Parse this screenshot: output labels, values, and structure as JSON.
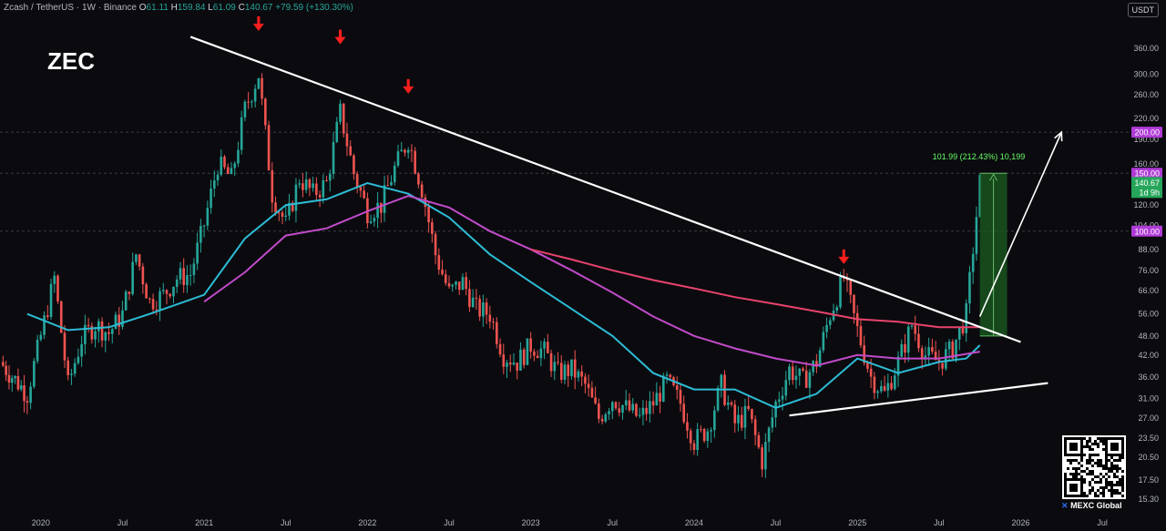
{
  "header": {
    "pair": "Zcash / TetherUS · 1W · Binance",
    "open_label": "O",
    "open": "61.11",
    "high_label": "H",
    "high": "159.84",
    "low_label": "L",
    "low": "61.09",
    "close_label": "C",
    "close": "140.67",
    "change": "+79.59 (+130.30%)"
  },
  "symbol": "ZEC",
  "currency_button": "USDT",
  "brand": {
    "mark": "✕",
    "name": "MEXC Global"
  },
  "colors": {
    "background": "#0b0b0f",
    "up": "#26a69a",
    "down": "#ef5350",
    "ema_short": "#2dbcd6",
    "ema_mid": "#c14bc9",
    "ema_long": "#e9436d",
    "trendline": "#ffffff",
    "arrow_marker": "#ff1e1e",
    "target_box": "#1b5e20",
    "level_label": "#b03bd6"
  },
  "chart_data": {
    "type": "candlestick",
    "title": "",
    "xlabel": "",
    "ylabel": "",
    "scale": "log",
    "ylim": [
      14,
      450
    ],
    "y_ticks": [
      15.3,
      17.5,
      20.5,
      23.5,
      27.0,
      31.0,
      36.0,
      42.0,
      48.0,
      56.0,
      66.0,
      76.0,
      88.0,
      104.0,
      120.0,
      140.0,
      160.0,
      190.0,
      220.0,
      260.0,
      300.0,
      360.0
    ],
    "x_ticks": [
      "2020",
      "Jul",
      "2021",
      "Jul",
      "2022",
      "Jul",
      "2023",
      "Jul",
      "2024",
      "Jul",
      "2025",
      "Jul",
      "2026",
      "Jul"
    ],
    "x_range": [
      "2019-10",
      "2026-09"
    ],
    "weekly_closes": [
      {
        "date": "2019-10",
        "close": 40
      },
      {
        "date": "2019-12",
        "close": 32
      },
      {
        "date": "2020-01",
        "close": 48
      },
      {
        "date": "2020-02",
        "close": 72
      },
      {
        "date": "2020-03",
        "close": 34
      },
      {
        "date": "2020-04",
        "close": 47
      },
      {
        "date": "2020-05",
        "close": 52
      },
      {
        "date": "2020-06",
        "close": 49
      },
      {
        "date": "2020-07",
        "close": 56
      },
      {
        "date": "2020-08",
        "close": 85
      },
      {
        "date": "2020-09",
        "close": 61
      },
      {
        "date": "2020-10",
        "close": 64
      },
      {
        "date": "2020-11",
        "close": 72
      },
      {
        "date": "2020-12",
        "close": 74
      },
      {
        "date": "2021-01",
        "close": 105
      },
      {
        "date": "2021-02",
        "close": 160
      },
      {
        "date": "2021-03",
        "close": 145
      },
      {
        "date": "2021-04",
        "close": 235
      },
      {
        "date": "2021-05",
        "close": 300
      },
      {
        "date": "2021-06",
        "close": 130
      },
      {
        "date": "2021-07",
        "close": 105
      },
      {
        "date": "2021-08",
        "close": 145
      },
      {
        "date": "2021-09",
        "close": 130
      },
      {
        "date": "2021-10",
        "close": 140
      },
      {
        "date": "2021-11",
        "close": 230
      },
      {
        "date": "2021-12",
        "close": 150
      },
      {
        "date": "2022-01",
        "close": 115
      },
      {
        "date": "2022-02",
        "close": 120
      },
      {
        "date": "2022-03",
        "close": 155
      },
      {
        "date": "2022-04",
        "close": 190
      },
      {
        "date": "2022-05",
        "close": 135
      },
      {
        "date": "2022-06",
        "close": 85
      },
      {
        "date": "2022-07",
        "close": 65
      },
      {
        "date": "2022-08",
        "close": 70
      },
      {
        "date": "2022-09",
        "close": 58
      },
      {
        "date": "2022-10",
        "close": 56
      },
      {
        "date": "2022-11",
        "close": 42
      },
      {
        "date": "2022-12",
        "close": 40
      },
      {
        "date": "2023-01",
        "close": 45
      },
      {
        "date": "2023-02",
        "close": 43
      },
      {
        "date": "2023-03",
        "close": 37
      },
      {
        "date": "2023-04",
        "close": 38
      },
      {
        "date": "2023-05",
        "close": 34
      },
      {
        "date": "2023-06",
        "close": 27
      },
      {
        "date": "2023-07",
        "close": 31
      },
      {
        "date": "2023-08",
        "close": 29
      },
      {
        "date": "2023-09",
        "close": 27
      },
      {
        "date": "2023-10",
        "close": 30
      },
      {
        "date": "2023-11",
        "close": 35
      },
      {
        "date": "2023-12",
        "close": 30
      },
      {
        "date": "2024-01",
        "close": 23
      },
      {
        "date": "2024-02",
        "close": 25
      },
      {
        "date": "2024-03",
        "close": 34
      },
      {
        "date": "2024-04",
        "close": 26
      },
      {
        "date": "2024-05",
        "close": 28
      },
      {
        "date": "2024-06",
        "close": 20
      },
      {
        "date": "2024-07",
        "close": 30
      },
      {
        "date": "2024-08",
        "close": 38
      },
      {
        "date": "2024-09",
        "close": 35
      },
      {
        "date": "2024-10",
        "close": 40
      },
      {
        "date": "2024-11",
        "close": 56
      },
      {
        "date": "2024-12",
        "close": 72
      },
      {
        "date": "2025-01",
        "close": 50
      },
      {
        "date": "2025-02",
        "close": 36
      },
      {
        "date": "2025-03",
        "close": 32
      },
      {
        "date": "2025-04",
        "close": 40
      },
      {
        "date": "2025-05",
        "close": 52
      },
      {
        "date": "2025-06",
        "close": 42
      },
      {
        "date": "2025-07",
        "close": 40
      },
      {
        "date": "2025-08",
        "close": 44
      },
      {
        "date": "2025-09",
        "close": 56
      },
      {
        "date": "2025-10",
        "close": 140.67
      }
    ],
    "moving_averages": [
      {
        "color": "ema_short",
        "points": [
          [
            "2019-12",
            56
          ],
          [
            "2020-03",
            50
          ],
          [
            "2020-06",
            51
          ],
          [
            "2020-09",
            56
          ],
          [
            "2021-01",
            64
          ],
          [
            "2021-04",
            95
          ],
          [
            "2021-07",
            120
          ],
          [
            "2021-10",
            125
          ],
          [
            "2022-01",
            140
          ],
          [
            "2022-04",
            130
          ],
          [
            "2022-07",
            110
          ],
          [
            "2022-10",
            85
          ],
          [
            "2023-01",
            70
          ],
          [
            "2023-04",
            58
          ],
          [
            "2023-07",
            48
          ],
          [
            "2023-10",
            37
          ],
          [
            "2024-01",
            33
          ],
          [
            "2024-04",
            33
          ],
          [
            "2024-07",
            29
          ],
          [
            "2024-10",
            32
          ],
          [
            "2025-01",
            41
          ],
          [
            "2025-04",
            37
          ],
          [
            "2025-07",
            40
          ],
          [
            "2025-09",
            41
          ],
          [
            "2025-10",
            45
          ]
        ]
      },
      {
        "color": "ema_mid",
        "points": [
          [
            "2021-01",
            61
          ],
          [
            "2021-04",
            75
          ],
          [
            "2021-07",
            97
          ],
          [
            "2021-10",
            102
          ],
          [
            "2022-01",
            115
          ],
          [
            "2022-04",
            128
          ],
          [
            "2022-07",
            118
          ],
          [
            "2022-10",
            100
          ],
          [
            "2023-01",
            88
          ],
          [
            "2023-04",
            76
          ],
          [
            "2023-07",
            65
          ],
          [
            "2023-10",
            55
          ],
          [
            "2024-01",
            48
          ],
          [
            "2024-04",
            44
          ],
          [
            "2024-07",
            41
          ],
          [
            "2024-10",
            39
          ],
          [
            "2025-01",
            42
          ],
          [
            "2025-04",
            41
          ],
          [
            "2025-07",
            41
          ],
          [
            "2025-10",
            43
          ]
        ]
      },
      {
        "color": "ema_long",
        "points": [
          [
            "2023-01",
            88
          ],
          [
            "2023-04",
            82
          ],
          [
            "2023-07",
            76
          ],
          [
            "2023-10",
            71
          ],
          [
            "2024-01",
            67
          ],
          [
            "2024-04",
            63
          ],
          [
            "2024-07",
            60
          ],
          [
            "2024-10",
            57
          ],
          [
            "2025-01",
            54
          ],
          [
            "2025-04",
            53
          ],
          [
            "2025-07",
            51
          ],
          [
            "2025-10",
            51
          ]
        ]
      }
    ],
    "trendlines": [
      {
        "name": "resistance",
        "from": [
          "2020-12",
          390
        ],
        "to": [
          "2026-01",
          46
        ]
      },
      {
        "name": "support",
        "from": [
          "2024-08",
          27.5
        ],
        "to": [
          "2026-03",
          34.5
        ]
      }
    ],
    "arrow_markers": [
      {
        "date": "2021-05",
        "price": 450
      },
      {
        "date": "2021-11",
        "price": 410
      },
      {
        "date": "2022-04",
        "price": 290
      },
      {
        "date": "2024-12",
        "price": 88
      }
    ],
    "projection_arrow": {
      "from": [
        "2025-10",
        55
      ],
      "to": [
        "2026-04",
        200
      ]
    },
    "target_box": {
      "from": "2025-10",
      "to": "2025-12",
      "low": 48,
      "high": 150
    },
    "measurement_label": "101.99 (212.43%) 10,199",
    "level_labels": [
      "200.00",
      "150.00",
      "100.00"
    ],
    "level_values": [
      200,
      150,
      100
    ],
    "current_price": "140.67",
    "countdown": "1d 9h"
  }
}
